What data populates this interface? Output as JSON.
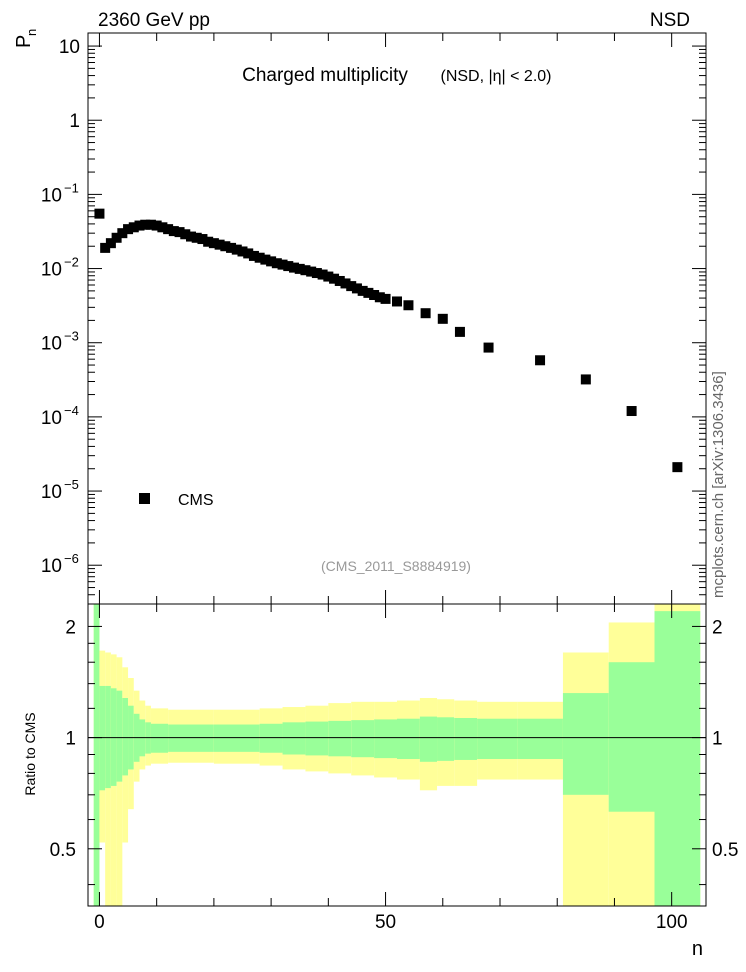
{
  "header": {
    "energy_label": "2360 GeV pp",
    "process_label": "NSD",
    "side_label": "mcplots.cern.ch [arXiv:1306.3436]"
  },
  "chart_data": [
    {
      "type": "scatter",
      "title": "Charged multiplicity",
      "subtitle": "(NSD, |η| < 2.0)",
      "analysis_tag": "(CMS_2011_S8884919)",
      "ylabel": "P",
      "ylabel_sub": "n",
      "xlim": [
        -2,
        106
      ],
      "ylim": [
        3e-07,
        15
      ],
      "yscale": "log",
      "y_ticks": [
        {
          "v": 10,
          "base": "10",
          "exp": ""
        },
        {
          "v": 1,
          "base": "1",
          "exp": ""
        },
        {
          "v": 0.1,
          "base": "10",
          "exp": "−1"
        },
        {
          "v": 0.01,
          "base": "10",
          "exp": "−2"
        },
        {
          "v": 0.001,
          "base": "10",
          "exp": "−3"
        },
        {
          "v": 0.0001,
          "base": "10",
          "exp": "−4"
        },
        {
          "v": 1e-05,
          "base": "10",
          "exp": "−5"
        },
        {
          "v": 1e-06,
          "base": "10",
          "exp": "−6"
        }
      ],
      "legend": {
        "label": "CMS",
        "position": "lower-left"
      },
      "series": [
        {
          "name": "CMS",
          "x": [
            0,
            1,
            2,
            3,
            4,
            5,
            6,
            7,
            8,
            9,
            10,
            11,
            12,
            13,
            14,
            15,
            16,
            17,
            18,
            19,
            20,
            21,
            22,
            23,
            24,
            25,
            26,
            27,
            28,
            29,
            30,
            31,
            32,
            33,
            34,
            35,
            36,
            37,
            38,
            39,
            40,
            41,
            42,
            43,
            44,
            45,
            46,
            47,
            48,
            49,
            50,
            52,
            54,
            57,
            60,
            63,
            68,
            77,
            85,
            93,
            101
          ],
          "y": [
            0.055,
            0.019,
            0.022,
            0.026,
            0.03,
            0.034,
            0.036,
            0.038,
            0.039,
            0.039,
            0.038,
            0.036,
            0.034,
            0.032,
            0.031,
            0.029,
            0.027,
            0.026,
            0.025,
            0.023,
            0.022,
            0.021,
            0.02,
            0.019,
            0.018,
            0.017,
            0.016,
            0.0148,
            0.014,
            0.0132,
            0.0125,
            0.0118,
            0.0113,
            0.0108,
            0.0103,
            0.0099,
            0.0095,
            0.0091,
            0.0087,
            0.0083,
            0.0078,
            0.0073,
            0.0068,
            0.0063,
            0.0058,
            0.0054,
            0.005,
            0.0047,
            0.0044,
            0.0041,
            0.0039,
            0.0036,
            0.0032,
            0.0025,
            0.0021,
            0.0014,
            0.00086,
            0.00058,
            0.00032,
            0.00012,
            2.1e-05
          ]
        }
      ]
    },
    {
      "type": "area",
      "ylabel": "Ratio to CMS",
      "xlabel": "n",
      "xlim": [
        -2,
        106
      ],
      "ylim": [
        0.35,
        2.3
      ],
      "yscale": "log",
      "x_ticks": [
        0,
        50,
        100
      ],
      "y_ticks": [
        0.5,
        1,
        2
      ],
      "reference_line": 1,
      "colors": {
        "inner_band": "#99ff99",
        "outer_band": "#ffff99",
        "line": "#000000"
      },
      "bins": [
        {
          "x0": -1,
          "x1": 0,
          "in_lo": 0.35,
          "in_hi": 2.3,
          "out_lo": 0.35,
          "out_hi": 2.3
        },
        {
          "x0": 0,
          "x1": 1,
          "in_lo": 0.72,
          "in_hi": 1.38,
          "out_lo": 0.52,
          "out_hi": 1.72
        },
        {
          "x0": 1,
          "x1": 2,
          "in_lo": 0.73,
          "in_hi": 1.38,
          "out_lo": 0.35,
          "out_hi": 1.7
        },
        {
          "x0": 2,
          "x1": 3,
          "in_lo": 0.74,
          "in_hi": 1.36,
          "out_lo": 0.35,
          "out_hi": 1.68
        },
        {
          "x0": 3,
          "x1": 4,
          "in_lo": 0.76,
          "in_hi": 1.34,
          "out_lo": 0.35,
          "out_hi": 1.65
        },
        {
          "x0": 4,
          "x1": 5,
          "in_lo": 0.79,
          "in_hi": 1.28,
          "out_lo": 0.52,
          "out_hi": 1.55
        },
        {
          "x0": 5,
          "x1": 6,
          "in_lo": 0.82,
          "in_hi": 1.22,
          "out_lo": 0.64,
          "out_hi": 1.45
        },
        {
          "x0": 6,
          "x1": 7,
          "in_lo": 0.86,
          "in_hi": 1.16,
          "out_lo": 0.76,
          "out_hi": 1.34
        },
        {
          "x0": 7,
          "x1": 8,
          "in_lo": 0.89,
          "in_hi": 1.12,
          "out_lo": 0.82,
          "out_hi": 1.26
        },
        {
          "x0": 8,
          "x1": 9,
          "in_lo": 0.905,
          "in_hi": 1.1,
          "out_lo": 0.84,
          "out_hi": 1.22
        },
        {
          "x0": 9,
          "x1": 12,
          "in_lo": 0.91,
          "in_hi": 1.09,
          "out_lo": 0.85,
          "out_hi": 1.2
        },
        {
          "x0": 12,
          "x1": 20,
          "in_lo": 0.915,
          "in_hi": 1.085,
          "out_lo": 0.855,
          "out_hi": 1.19
        },
        {
          "x0": 20,
          "x1": 28,
          "in_lo": 0.915,
          "in_hi": 1.085,
          "out_lo": 0.85,
          "out_hi": 1.19
        },
        {
          "x0": 28,
          "x1": 32,
          "in_lo": 0.91,
          "in_hi": 1.09,
          "out_lo": 0.84,
          "out_hi": 1.2
        },
        {
          "x0": 32,
          "x1": 36,
          "in_lo": 0.9,
          "in_hi": 1.1,
          "out_lo": 0.82,
          "out_hi": 1.21
        },
        {
          "x0": 36,
          "x1": 40,
          "in_lo": 0.895,
          "in_hi": 1.105,
          "out_lo": 0.81,
          "out_hi": 1.22
        },
        {
          "x0": 40,
          "x1": 44,
          "in_lo": 0.89,
          "in_hi": 1.11,
          "out_lo": 0.8,
          "out_hi": 1.24
        },
        {
          "x0": 44,
          "x1": 48,
          "in_lo": 0.885,
          "in_hi": 1.115,
          "out_lo": 0.79,
          "out_hi": 1.25
        },
        {
          "x0": 48,
          "x1": 52,
          "in_lo": 0.88,
          "in_hi": 1.12,
          "out_lo": 0.78,
          "out_hi": 1.25
        },
        {
          "x0": 52,
          "x1": 56,
          "in_lo": 0.875,
          "in_hi": 1.125,
          "out_lo": 0.77,
          "out_hi": 1.26
        },
        {
          "x0": 56,
          "x1": 59,
          "in_lo": 0.86,
          "in_hi": 1.14,
          "out_lo": 0.72,
          "out_hi": 1.28
        },
        {
          "x0": 59,
          "x1": 62,
          "in_lo": 0.865,
          "in_hi": 1.135,
          "out_lo": 0.74,
          "out_hi": 1.27
        },
        {
          "x0": 62,
          "x1": 66,
          "in_lo": 0.87,
          "in_hi": 1.13,
          "out_lo": 0.74,
          "out_hi": 1.26
        },
        {
          "x0": 66,
          "x1": 73,
          "in_lo": 0.875,
          "in_hi": 1.125,
          "out_lo": 0.77,
          "out_hi": 1.25
        },
        {
          "x0": 73,
          "x1": 81,
          "in_lo": 0.875,
          "in_hi": 1.125,
          "out_lo": 0.77,
          "out_hi": 1.25
        },
        {
          "x0": 81,
          "x1": 89,
          "in_lo": 0.7,
          "in_hi": 1.32,
          "out_lo": 0.35,
          "out_hi": 1.7
        },
        {
          "x0": 89,
          "x1": 97,
          "in_lo": 0.63,
          "in_hi": 1.6,
          "out_lo": 0.35,
          "out_hi": 2.05
        },
        {
          "x0": 97,
          "x1": 105,
          "in_lo": 0.35,
          "in_hi": 2.2,
          "out_lo": 0.35,
          "out_hi": 2.3
        }
      ]
    }
  ]
}
